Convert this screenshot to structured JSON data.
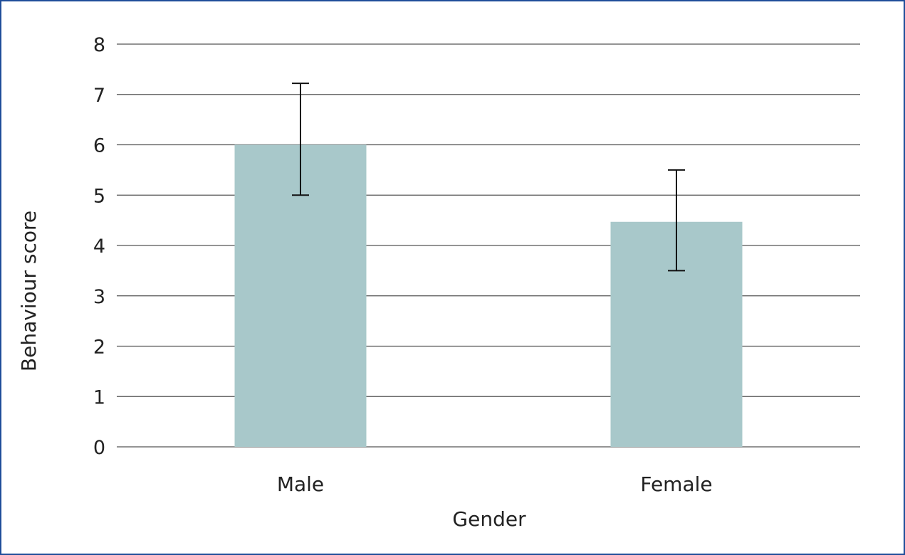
{
  "chart_data": {
    "type": "bar",
    "categories": [
      "Male",
      "Female"
    ],
    "values": [
      6.0,
      4.47
    ],
    "error_bars": [
      {
        "low": 5.0,
        "high": 7.22
      },
      {
        "low": 3.5,
        "high": 5.5
      }
    ],
    "xlabel": "Gender",
    "ylabel": "Behaviour score",
    "ylim": [
      0,
      8
    ],
    "yticks": [
      "0",
      "1",
      "2",
      "3",
      "4",
      "5",
      "6",
      "7",
      "8"
    ],
    "grid": true,
    "bar_color": "#a8c8ca",
    "frame_color": "#1f4e9a"
  }
}
